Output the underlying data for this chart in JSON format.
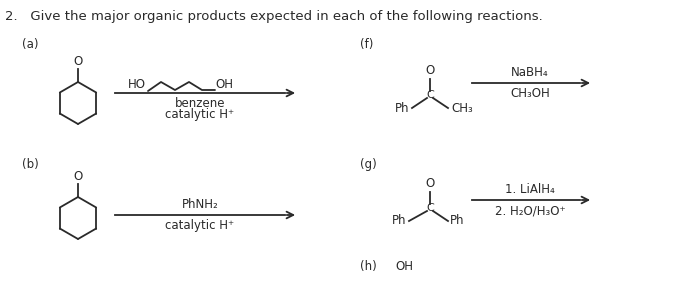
{
  "title": "2.   Give the major organic products expected in each of the following reactions.",
  "background": "#ffffff",
  "text_color": "#2a2a2a",
  "label_a": "(a)",
  "label_b": "(b)",
  "label_f": "(f)",
  "label_g": "(g)",
  "label_h": "(h)",
  "text_h": "OH",
  "reagent_a_top": "HO",
  "reagent_a_top2": "OH",
  "reagent_a1": "benzene",
  "reagent_a2": "catalytic H⁺",
  "reagent_b1": "PhNH₂",
  "reagent_b2": "catalytic H⁺",
  "reagent_f1": "NaBH₄",
  "reagent_f2": "CH₃OH",
  "reagent_g1": "1. LiAlH₄",
  "reagent_g2": "2. H₂O/H₃O⁺",
  "mol_f_c": "C",
  "mol_f_o": "O",
  "mol_f_ph": "Ph",
  "mol_f_ch3": "CH₃",
  "mol_g_c": "C",
  "mol_g_o": "O",
  "mol_g_ph_l": "Ph",
  "mol_g_ph_r": "Ph"
}
